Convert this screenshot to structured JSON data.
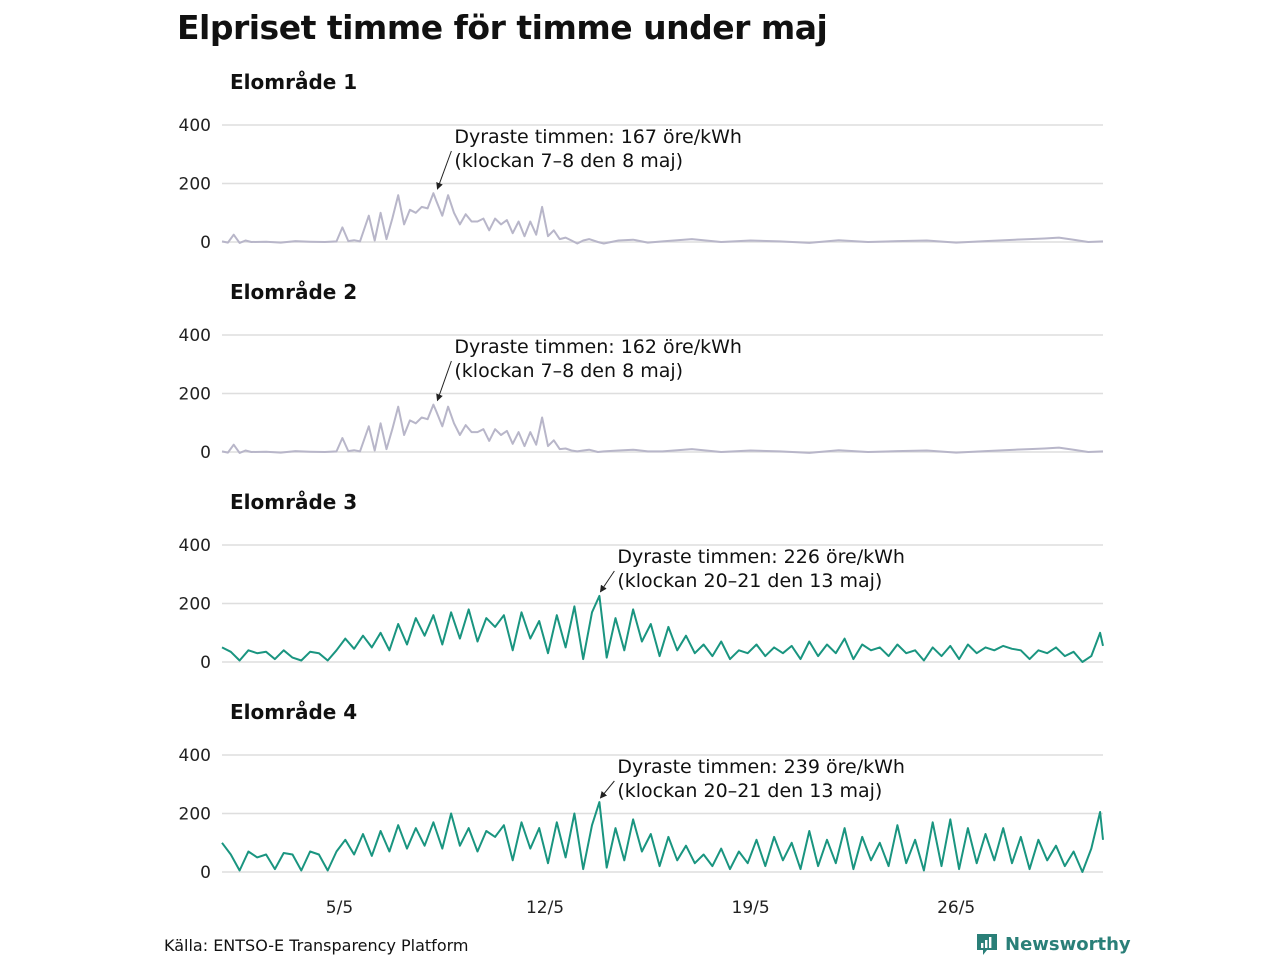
{
  "title": "Elpriset timme för timme under maj",
  "source": "Källa: ENTSO-E Transparency Platform",
  "brand": "Newsworthy",
  "colors": {
    "grey_series": "#b8b6c9",
    "green_series": "#1a9580",
    "grid": "#dcdcdc",
    "brand": "#2a7f78"
  },
  "chart_data": [
    {
      "type": "line",
      "title": "Elområde 1",
      "color": "#b8b6c9",
      "ylim": [
        -20,
        420
      ],
      "yticks": [
        0,
        200,
        400
      ],
      "annotation": {
        "text": [
          "Dyraste timmen: 167 öre/kWh",
          "(klockan 7–8 den 8 maj)"
        ],
        "x": 8.3,
        "y": 167
      },
      "series": [
        {
          "x": [
            1.0,
            1.2,
            1.4,
            1.6,
            1.8,
            2.0,
            2.5,
            3.0,
            3.5,
            4.0,
            4.5,
            4.9,
            5.1,
            5.3,
            5.5,
            5.7,
            6.0,
            6.2,
            6.4,
            6.6,
            6.8,
            7.0,
            7.2,
            7.4,
            7.6,
            7.8,
            8.0,
            8.2,
            8.3,
            8.5,
            8.7,
            8.9,
            9.1,
            9.3,
            9.5,
            9.7,
            9.9,
            10.1,
            10.3,
            10.5,
            10.7,
            10.9,
            11.1,
            11.3,
            11.5,
            11.7,
            11.9,
            12.1,
            12.3,
            12.5,
            12.7,
            12.9,
            13.1,
            13.3,
            13.5,
            13.8,
            14.0,
            14.5,
            15.0,
            15.5,
            16.0,
            17.0,
            18.0,
            19.0,
            20.0,
            21.0,
            22.0,
            23.0,
            24.0,
            25.0,
            26.0,
            27.0,
            28.0,
            28.5,
            29.0,
            29.5,
            30.0,
            30.5,
            31.0
          ],
          "y": [
            2,
            -2,
            25,
            -3,
            5,
            0,
            1,
            -2,
            3,
            1,
            0,
            2,
            50,
            3,
            6,
            2,
            90,
            5,
            100,
            10,
            80,
            160,
            60,
            110,
            100,
            120,
            115,
            167,
            140,
            90,
            160,
            100,
            60,
            95,
            70,
            70,
            80,
            40,
            80,
            60,
            75,
            30,
            70,
            20,
            70,
            25,
            120,
            20,
            40,
            10,
            15,
            5,
            -5,
            5,
            10,
            0,
            -5,
            5,
            8,
            -2,
            2,
            10,
            0,
            5,
            2,
            -3,
            6,
            0,
            3,
            5,
            -2,
            3,
            8,
            10,
            12,
            15,
            8,
            0,
            2
          ]
        }
      ]
    },
    {
      "type": "line",
      "title": "Elområde 2",
      "color": "#b8b6c9",
      "ylim": [
        -20,
        420
      ],
      "yticks": [
        0,
        200,
        400
      ],
      "annotation": {
        "text": [
          "Dyraste timmen: 162 öre/kWh",
          "(klockan 7–8 den 8 maj)"
        ],
        "x": 8.3,
        "y": 162
      },
      "series": [
        {
          "x": [
            1.0,
            1.2,
            1.4,
            1.6,
            1.8,
            2.0,
            2.5,
            3.0,
            3.5,
            4.0,
            4.5,
            4.9,
            5.1,
            5.3,
            5.5,
            5.7,
            6.0,
            6.2,
            6.4,
            6.6,
            6.8,
            7.0,
            7.2,
            7.4,
            7.6,
            7.8,
            8.0,
            8.2,
            8.3,
            8.5,
            8.7,
            8.9,
            9.1,
            9.3,
            9.5,
            9.7,
            9.9,
            10.1,
            10.3,
            10.5,
            10.7,
            10.9,
            11.1,
            11.3,
            11.5,
            11.7,
            11.9,
            12.1,
            12.3,
            12.5,
            12.7,
            12.9,
            13.1,
            13.3,
            13.5,
            13.8,
            14.0,
            14.5,
            15.0,
            15.5,
            16.0,
            17.0,
            18.0,
            19.0,
            20.0,
            21.0,
            22.0,
            23.0,
            24.0,
            25.0,
            26.0,
            27.0,
            28.0,
            28.5,
            29.0,
            29.5,
            30.0,
            30.5,
            31.0
          ],
          "y": [
            2,
            -2,
            25,
            -3,
            5,
            0,
            1,
            -2,
            3,
            1,
            0,
            2,
            48,
            3,
            6,
            2,
            88,
            5,
            98,
            10,
            78,
            155,
            58,
            108,
            98,
            118,
            112,
            162,
            138,
            88,
            155,
            98,
            58,
            92,
            68,
            68,
            78,
            38,
            78,
            58,
            72,
            28,
            68,
            20,
            68,
            25,
            118,
            20,
            40,
            10,
            12,
            5,
            2,
            5,
            8,
            0,
            2,
            5,
            8,
            2,
            2,
            10,
            0,
            5,
            2,
            -3,
            6,
            0,
            3,
            5,
            -2,
            3,
            8,
            10,
            12,
            15,
            8,
            0,
            2
          ]
        }
      ]
    },
    {
      "type": "line",
      "title": "Elområde 3",
      "color": "#1a9580",
      "ylim": [
        -20,
        420
      ],
      "yticks": [
        0,
        200,
        400
      ],
      "annotation": {
        "text": [
          "Dyraste timmen: 226 öre/kWh",
          "(klockan 20–21 den 13 maj)"
        ],
        "x": 13.85,
        "y": 226
      },
      "series": [
        {
          "x": [
            1.0,
            1.3,
            1.6,
            1.9,
            2.2,
            2.5,
            2.8,
            3.1,
            3.4,
            3.7,
            4.0,
            4.3,
            4.6,
            4.9,
            5.2,
            5.5,
            5.8,
            6.1,
            6.4,
            6.7,
            7.0,
            7.3,
            7.6,
            7.9,
            8.2,
            8.5,
            8.8,
            9.1,
            9.4,
            9.7,
            10.0,
            10.3,
            10.6,
            10.9,
            11.2,
            11.5,
            11.8,
            12.1,
            12.4,
            12.7,
            13.0,
            13.3,
            13.6,
            13.85,
            14.1,
            14.4,
            14.7,
            15.0,
            15.3,
            15.6,
            15.9,
            16.2,
            16.5,
            16.8,
            17.1,
            17.4,
            17.7,
            18.0,
            18.3,
            18.6,
            18.9,
            19.2,
            19.5,
            19.8,
            20.1,
            20.4,
            20.7,
            21.0,
            21.3,
            21.6,
            21.9,
            22.2,
            22.5,
            22.8,
            23.1,
            23.4,
            23.7,
            24.0,
            24.3,
            24.6,
            24.9,
            25.2,
            25.5,
            25.8,
            26.1,
            26.4,
            26.7,
            27.0,
            27.3,
            27.6,
            27.9,
            28.2,
            28.5,
            28.8,
            29.1,
            29.4,
            29.7,
            30.0,
            30.3,
            30.6,
            30.9,
            31.0
          ],
          "y": [
            50,
            35,
            5,
            40,
            30,
            35,
            10,
            40,
            15,
            5,
            35,
            30,
            5,
            40,
            80,
            45,
            90,
            50,
            100,
            40,
            130,
            60,
            150,
            90,
            160,
            60,
            170,
            80,
            180,
            70,
            150,
            120,
            160,
            40,
            170,
            80,
            140,
            30,
            160,
            50,
            190,
            10,
            170,
            226,
            15,
            150,
            40,
            180,
            70,
            130,
            20,
            120,
            40,
            90,
            30,
            60,
            20,
            70,
            10,
            40,
            30,
            60,
            20,
            50,
            30,
            55,
            10,
            70,
            20,
            60,
            30,
            80,
            10,
            60,
            40,
            50,
            20,
            60,
            30,
            40,
            5,
            50,
            20,
            55,
            10,
            60,
            30,
            50,
            40,
            55,
            45,
            40,
            10,
            40,
            30,
            50,
            20,
            35,
            0,
            20,
            100,
            55
          ]
        }
      ]
    },
    {
      "type": "line",
      "title": "Elområde 4",
      "color": "#1a9580",
      "xtick_labels": [
        "5/5",
        "12/5",
        "19/5",
        "26/5"
      ],
      "ylim": [
        -20,
        420
      ],
      "yticks": [
        0,
        200,
        400
      ],
      "annotation": {
        "text": [
          "Dyraste timmen: 239 öre/kWh",
          "(klockan 20–21 den 13 maj)"
        ],
        "x": 13.85,
        "y": 239
      },
      "series": [
        {
          "x": [
            1.0,
            1.3,
            1.6,
            1.9,
            2.2,
            2.5,
            2.8,
            3.1,
            3.4,
            3.7,
            4.0,
            4.3,
            4.6,
            4.9,
            5.2,
            5.5,
            5.8,
            6.1,
            6.4,
            6.7,
            7.0,
            7.3,
            7.6,
            7.9,
            8.2,
            8.5,
            8.8,
            9.1,
            9.4,
            9.7,
            10.0,
            10.3,
            10.6,
            10.9,
            11.2,
            11.5,
            11.8,
            12.1,
            12.4,
            12.7,
            13.0,
            13.3,
            13.6,
            13.85,
            14.1,
            14.4,
            14.7,
            15.0,
            15.3,
            15.6,
            15.9,
            16.2,
            16.5,
            16.8,
            17.1,
            17.4,
            17.7,
            18.0,
            18.3,
            18.6,
            18.9,
            19.2,
            19.5,
            19.8,
            20.1,
            20.4,
            20.7,
            21.0,
            21.3,
            21.6,
            21.9,
            22.2,
            22.5,
            22.8,
            23.1,
            23.4,
            23.7,
            24.0,
            24.3,
            24.6,
            24.9,
            25.2,
            25.5,
            25.8,
            26.1,
            26.4,
            26.7,
            27.0,
            27.3,
            27.6,
            27.9,
            28.2,
            28.5,
            28.8,
            29.1,
            29.4,
            29.7,
            30.0,
            30.3,
            30.6,
            30.9,
            31.0
          ],
          "y": [
            100,
            60,
            5,
            70,
            50,
            60,
            10,
            65,
            60,
            5,
            70,
            60,
            5,
            70,
            110,
            60,
            130,
            55,
            140,
            70,
            160,
            80,
            150,
            90,
            170,
            80,
            200,
            90,
            150,
            70,
            140,
            120,
            160,
            40,
            170,
            80,
            150,
            30,
            170,
            50,
            200,
            10,
            160,
            239,
            15,
            150,
            40,
            180,
            70,
            130,
            20,
            120,
            40,
            90,
            30,
            60,
            20,
            80,
            10,
            70,
            30,
            110,
            20,
            120,
            40,
            100,
            10,
            140,
            20,
            110,
            30,
            150,
            10,
            120,
            40,
            100,
            20,
            160,
            30,
            110,
            5,
            170,
            20,
            180,
            10,
            150,
            30,
            130,
            40,
            150,
            30,
            120,
            10,
            110,
            40,
            90,
            20,
            70,
            0,
            80,
            205,
            110
          ]
        }
      ]
    }
  ]
}
